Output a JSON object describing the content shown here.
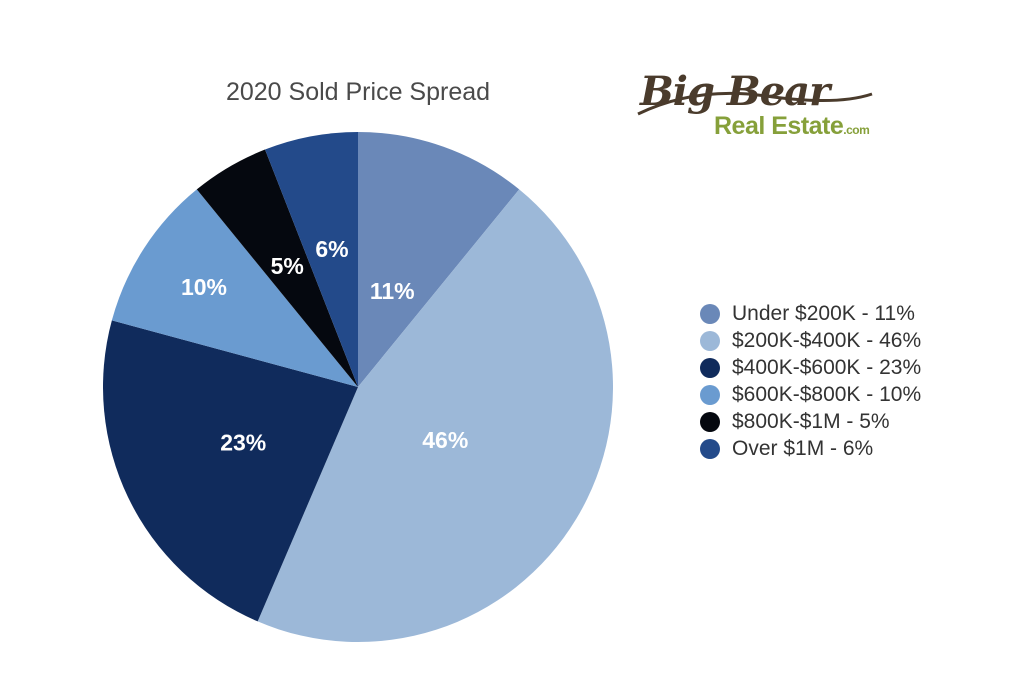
{
  "chart_data": {
    "type": "pie",
    "title": "2020 Sold Price Spread",
    "slices": [
      {
        "label": "Under $200K",
        "value": 11,
        "data_label": "11%",
        "legend": "Under $200K - 11%",
        "color": "#6a88b8"
      },
      {
        "label": "$200K-$400K",
        "value": 46,
        "data_label": "46%",
        "legend": "$200K-$400K - 46%",
        "color": "#9cb8d8"
      },
      {
        "label": "$400K-$600K",
        "value": 23,
        "data_label": "23%",
        "legend": "$400K-$600K - 23%",
        "color": "#102b5c"
      },
      {
        "label": "$600K-$800K",
        "value": 10,
        "data_label": "10%",
        "legend": "$600K-$800K - 10%",
        "color": "#6a9bd0"
      },
      {
        "label": "$800K-$1M",
        "value": 5,
        "data_label": "5%",
        "legend": "$800K-$1M - 5%",
        "color": "#05080f"
      },
      {
        "label": "Over $1M",
        "value": 6,
        "data_label": "6%",
        "legend": "Over $1M - 6%",
        "color": "#234a8a"
      }
    ],
    "legend_position": "right",
    "start_angle": "top",
    "direction": "clockwise"
  },
  "logo": {
    "script_text": "Big Bear",
    "sub_text": "Real Estate",
    "suffix_text": ".com",
    "script_color": "#4a3b2c",
    "sub_color": "#86a03a"
  }
}
